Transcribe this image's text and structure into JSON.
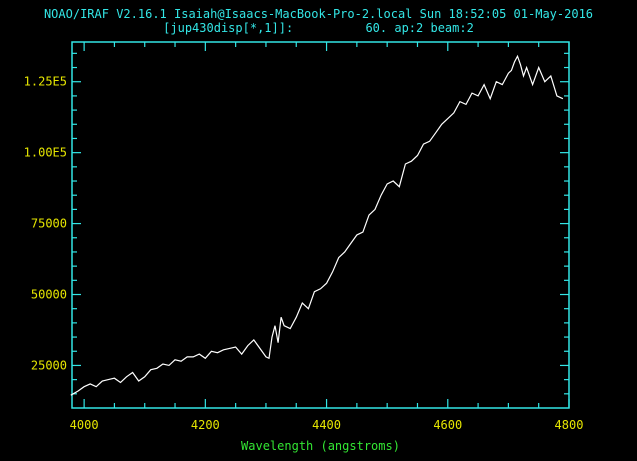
{
  "header": {
    "line1": "NOAO/IRAF V2.16.1 Isaiah@Isaacs-MacBook-Pro-2.local Sun 18:52:05 01-May-2016",
    "line2": "[jup430disp[*,1]]:          60. ap:2 beam:2"
  },
  "colors": {
    "background": "#000000",
    "frame": "#33e6e6",
    "tick_labels": "#e6e600",
    "axis_title": "#33e633",
    "spectrum": "#ffffff"
  },
  "chart_data": {
    "type": "line",
    "title": "",
    "xlabel": "Wavelength (angstroms)",
    "ylabel": "",
    "xlim": [
      3980,
      4800
    ],
    "ylim": [
      10000,
      139000
    ],
    "x_ticks": [
      4000,
      4200,
      4400,
      4600,
      4800
    ],
    "x_tick_labels": [
      "4000",
      "4200",
      "4400",
      "4600",
      "4800"
    ],
    "y_ticks": [
      25000,
      50000,
      75000,
      100000,
      125000
    ],
    "y_tick_labels": [
      "25000",
      "50000",
      "75000",
      "1.00E5",
      "1.25E5"
    ],
    "grid": false,
    "series": [
      {
        "x": [
          3978,
          3990,
          4000,
          4010,
          4020,
          4030,
          4040,
          4050,
          4060,
          4070,
          4080,
          4090,
          4100,
          4110,
          4120,
          4130,
          4140,
          4150,
          4160,
          4170,
          4180,
          4190,
          4200,
          4210,
          4220,
          4230,
          4240,
          4250,
          4260,
          4270,
          4280,
          4290,
          4300,
          4305,
          4310,
          4315,
          4320,
          4325,
          4330,
          4340,
          4350,
          4360,
          4370,
          4380,
          4390,
          4400,
          4410,
          4420,
          4430,
          4440,
          4450,
          4460,
          4470,
          4480,
          4490,
          4500,
          4510,
          4520,
          4530,
          4540,
          4550,
          4560,
          4570,
          4580,
          4590,
          4600,
          4610,
          4620,
          4630,
          4640,
          4650,
          4660,
          4670,
          4680,
          4690,
          4700,
          4705,
          4710,
          4715,
          4720,
          4725,
          4730,
          4740,
          4750,
          4760,
          4770,
          4780,
          4790
        ],
        "values": [
          14500,
          16000,
          17500,
          18500,
          17500,
          19500,
          20000,
          20500,
          19000,
          21000,
          22500,
          19500,
          21000,
          23500,
          24000,
          25500,
          25000,
          27000,
          26500,
          28000,
          28000,
          29000,
          27500,
          30000,
          29500,
          30500,
          31000,
          31500,
          29000,
          32000,
          34000,
          31000,
          28000,
          27500,
          35000,
          39000,
          33000,
          42000,
          39000,
          38000,
          42000,
          47000,
          45000,
          51000,
          52000,
          54000,
          58000,
          63000,
          65000,
          68000,
          71000,
          72000,
          78000,
          80000,
          85000,
          89000,
          90000,
          88000,
          96000,
          97000,
          99000,
          103000,
          104000,
          107000,
          110000,
          112000,
          114000,
          118000,
          117000,
          121000,
          120000,
          124000,
          119000,
          125000,
          124000,
          128000,
          129000,
          132000,
          134000,
          131000,
          127000,
          130000,
          124000,
          130000,
          125000,
          127000,
          120000,
          119000
        ]
      }
    ]
  }
}
